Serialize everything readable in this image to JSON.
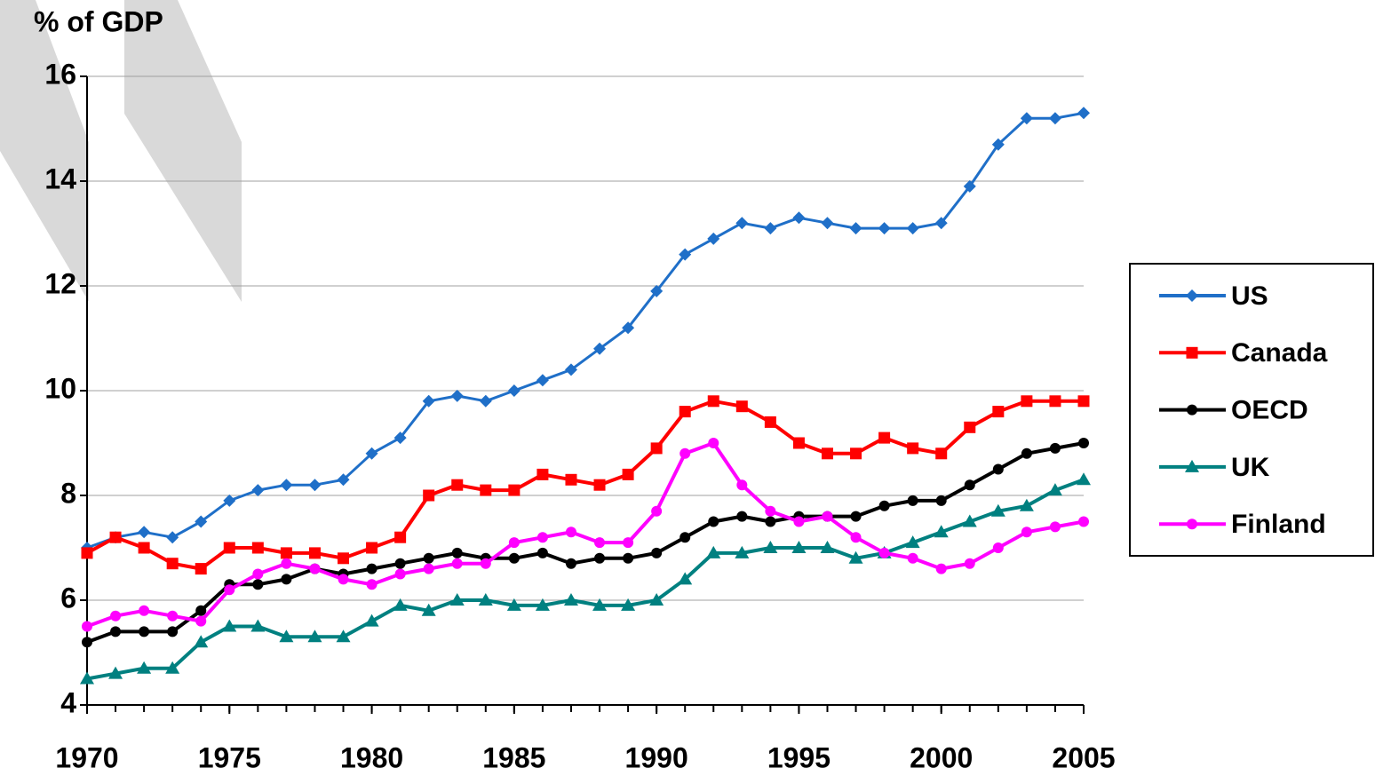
{
  "chart_data": {
    "type": "line",
    "y_label": "% of GDP",
    "x": [
      1970,
      1971,
      1972,
      1973,
      1974,
      1975,
      1976,
      1977,
      1978,
      1979,
      1980,
      1981,
      1982,
      1983,
      1984,
      1985,
      1986,
      1987,
      1988,
      1989,
      1990,
      1991,
      1992,
      1993,
      1994,
      1995,
      1996,
      1997,
      1998,
      1999,
      2000,
      2001,
      2002,
      2003,
      2004,
      2005
    ],
    "xlim": [
      1970,
      2005
    ],
    "xticks": [
      1970,
      1975,
      1980,
      1985,
      1990,
      1995,
      2000,
      2005
    ],
    "ylim": [
      4,
      16
    ],
    "yticks": [
      4,
      6,
      8,
      10,
      12,
      14,
      16
    ],
    "grid": true,
    "legend": "right",
    "series": [
      {
        "name": "US",
        "color": "#1f6fc8",
        "marker": "diamond",
        "values": [
          7.0,
          7.2,
          7.3,
          7.2,
          7.5,
          7.9,
          8.1,
          8.2,
          8.2,
          8.3,
          8.8,
          9.1,
          9.8,
          9.9,
          9.8,
          10.0,
          10.2,
          10.4,
          10.8,
          11.2,
          11.9,
          12.6,
          12.9,
          13.2,
          13.1,
          13.3,
          13.2,
          13.1,
          13.1,
          13.1,
          13.2,
          13.9,
          14.7,
          15.2,
          15.2,
          15.3
        ]
      },
      {
        "name": "Canada",
        "color": "#ff0000",
        "marker": "square",
        "values": [
          6.9,
          7.2,
          7.0,
          6.7,
          6.6,
          7.0,
          7.0,
          6.9,
          6.9,
          6.8,
          7.0,
          7.2,
          8.0,
          8.2,
          8.1,
          8.1,
          8.4,
          8.3,
          8.2,
          8.4,
          8.9,
          9.6,
          9.8,
          9.7,
          9.4,
          9.0,
          8.8,
          8.8,
          9.1,
          8.9,
          8.8,
          9.3,
          9.6,
          9.8,
          9.8,
          9.8
        ]
      },
      {
        "name": "OECD",
        "color": "#000000",
        "marker": "circle",
        "values": [
          5.2,
          5.4,
          5.4,
          5.4,
          5.8,
          6.3,
          6.3,
          6.4,
          6.6,
          6.5,
          6.6,
          6.7,
          6.8,
          6.9,
          6.8,
          6.8,
          6.9,
          6.7,
          6.8,
          6.8,
          6.9,
          7.2,
          7.5,
          7.6,
          7.5,
          7.6,
          7.6,
          7.6,
          7.8,
          7.9,
          7.9,
          8.2,
          8.5,
          8.8,
          8.9,
          9.0
        ]
      },
      {
        "name": "UK",
        "color": "#008080",
        "marker": "triangle",
        "values": [
          4.5,
          4.6,
          4.7,
          4.7,
          5.2,
          5.5,
          5.5,
          5.3,
          5.3,
          5.3,
          5.6,
          5.9,
          5.8,
          6.0,
          6.0,
          5.9,
          5.9,
          6.0,
          5.9,
          5.9,
          6.0,
          6.4,
          6.9,
          6.9,
          7.0,
          7.0,
          7.0,
          6.8,
          6.9,
          7.1,
          7.3,
          7.5,
          7.7,
          7.8,
          8.1,
          8.3
        ]
      },
      {
        "name": "Finland",
        "color": "#ff00ff",
        "marker": "circle",
        "values": [
          5.5,
          5.7,
          5.8,
          5.7,
          5.6,
          6.2,
          6.5,
          6.7,
          6.6,
          6.4,
          6.3,
          6.5,
          6.6,
          6.7,
          6.7,
          7.1,
          7.2,
          7.3,
          7.1,
          7.1,
          7.7,
          8.8,
          9.0,
          8.2,
          7.7,
          7.5,
          7.6,
          7.2,
          6.9,
          6.8,
          6.6,
          6.7,
          7.0,
          7.3,
          7.4,
          7.5
        ]
      }
    ]
  }
}
